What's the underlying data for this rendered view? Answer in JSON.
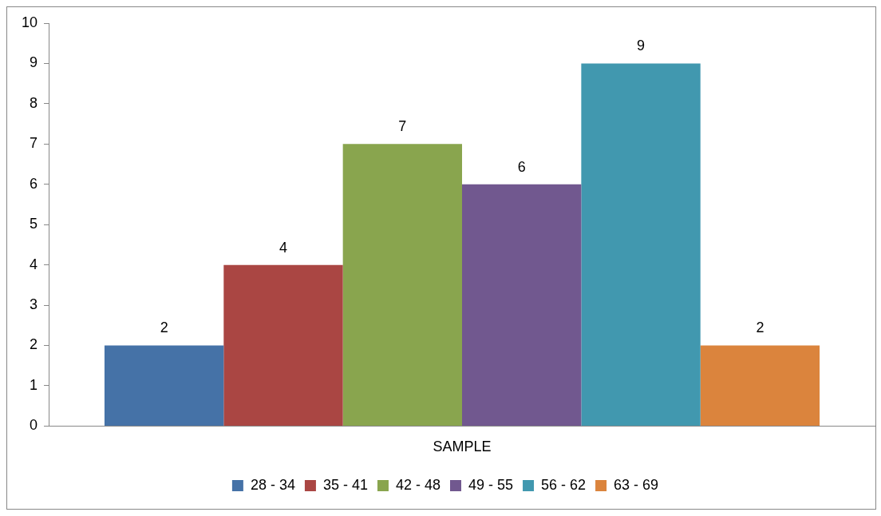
{
  "chart_data": {
    "type": "bar",
    "categories": [
      "SAMPLE"
    ],
    "series": [
      {
        "name": "28 - 34",
        "color": "#4572a7",
        "values": [
          2
        ]
      },
      {
        "name": "35 - 41",
        "color": "#aa4643",
        "values": [
          4
        ]
      },
      {
        "name": "42 - 48",
        "color": "#89a54e",
        "values": [
          7
        ]
      },
      {
        "name": "49 - 55",
        "color": "#71588f",
        "values": [
          6
        ]
      },
      {
        "name": "56 - 62",
        "color": "#4198af",
        "values": [
          9
        ]
      },
      {
        "name": "63 - 69",
        "color": "#db843d",
        "values": [
          2
        ]
      }
    ],
    "ylim": [
      0,
      10
    ],
    "yticks": [
      0,
      1,
      2,
      3,
      4,
      5,
      6,
      7,
      8,
      9,
      10
    ],
    "grid": false,
    "legend": "bottom",
    "data_labels": true
  }
}
